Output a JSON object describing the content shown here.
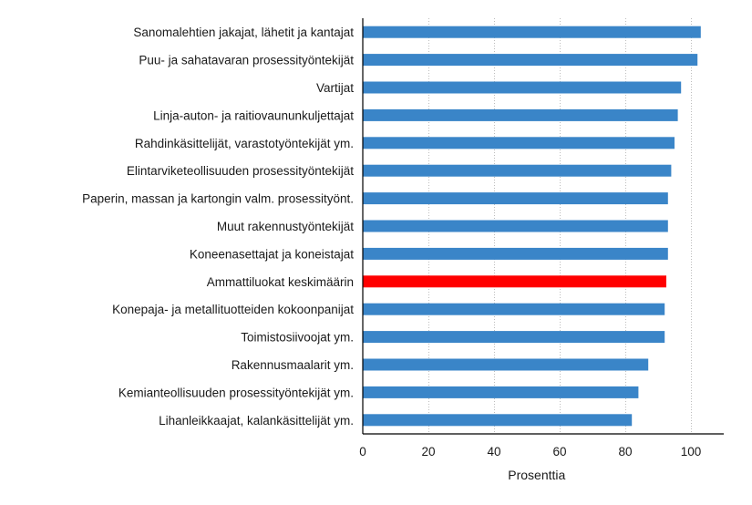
{
  "chart_data": {
    "type": "bar",
    "orientation": "horizontal",
    "categories": [
      "Sanomalehtien jakajat, lähetit ja kantajat",
      "Puu- ja sahatavaran prosessityöntekijät",
      "Vartijat",
      "Linja-auton- ja raitiovaununkuljettajat",
      "Rahdinkäsittelijät, varastotyöntekijät ym.",
      "Elintarviketeollisuuden prosessityöntekijät",
      "Paperin, massan ja kartongin valm. prosessityönt.",
      "Muut rakennustyöntekijät",
      "Koneenasettajat ja koneistajat",
      "Ammattiluokat keskimäärin",
      "Konepaja- ja metallituotteiden kokoonpanijat",
      "Toimistosiivoojat ym.",
      "Rakennusmaalarit ym.",
      "Kemianteollisuuden prosessityöntekijät ym.",
      "Lihanleikkaajat, kalankäsittelijät ym."
    ],
    "values": [
      103,
      102,
      97,
      96,
      95,
      94,
      93,
      93,
      93,
      92.5,
      92,
      92,
      87,
      84,
      82
    ],
    "highlight_index": 9,
    "xlabel": "Prosenttia",
    "xlim": [
      0,
      110
    ],
    "xticks": [
      0,
      20,
      40,
      60,
      80,
      100
    ],
    "grid": "vertical",
    "colors": {
      "bar": "#3a85c8",
      "highlight": "#ff0000"
    }
  }
}
